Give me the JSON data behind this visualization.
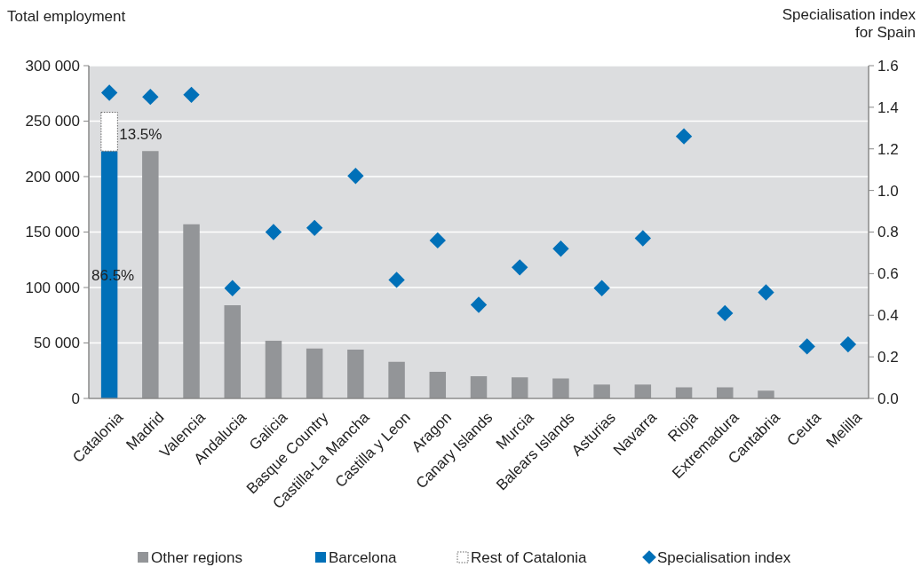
{
  "chart_data": {
    "type": "bar",
    "stacked": true,
    "ylabel": "Total employment",
    "y2label": "Specialisation index\nfor Spain",
    "categories": [
      "Catalonia",
      "Madrid",
      "Valencia",
      "Andalucia",
      "Galicia",
      "Basque Country",
      "Castilla-La Mancha",
      "Castilla y Leon",
      "Aragon",
      "Canary Islands",
      "Murcia",
      "Balears Islands",
      "Asturias",
      "Navarra",
      "Rioja",
      "Extremadura",
      "Cantabria",
      "Ceuta",
      "Melilla"
    ],
    "series": [
      {
        "name": "Other regions",
        "type": "bar",
        "color": "#939598",
        "values": [
          null,
          223000,
          157000,
          84000,
          52000,
          45000,
          44000,
          33000,
          24000,
          20000,
          19000,
          18000,
          12500,
          12500,
          10000,
          10000,
          7000,
          null,
          null
        ]
      },
      {
        "name": "Barcelona",
        "type": "bar",
        "color": "#0070b8",
        "values": [
          223000,
          null,
          null,
          null,
          null,
          null,
          null,
          null,
          null,
          null,
          null,
          null,
          null,
          null,
          null,
          null,
          null,
          null,
          null
        ]
      },
      {
        "name": "Rest of Catalonia",
        "type": "bar",
        "color": "#ffffff",
        "values": [
          35000,
          null,
          null,
          null,
          null,
          null,
          null,
          null,
          null,
          null,
          null,
          null,
          null,
          null,
          null,
          null,
          null,
          null,
          null
        ]
      },
      {
        "name": "Specialisation index",
        "type": "scatter",
        "axis": "y2",
        "marker": "diamond",
        "color": "#0070b8",
        "x": [
          "Catalonia",
          "Madrid",
          "Valencia",
          "Andalucia",
          "Galicia",
          "Basque Country",
          "Castilla-La Mancha",
          "Castilla y Leon",
          "Aragon",
          "Canary Islands",
          "Murcia",
          "Balears Islands",
          "Asturias",
          "Navarra",
          "Rioja",
          "Extremadura",
          "Cantabria",
          "Ceuta",
          "Melilla"
        ],
        "values": [
          1.47,
          1.45,
          1.46,
          0.53,
          0.8,
          0.82,
          1.07,
          0.57,
          0.76,
          0.45,
          0.63,
          0.72,
          0.53,
          0.77,
          1.26,
          0.41,
          0.51,
          0.25,
          0.26
        ]
      }
    ],
    "annotations": [
      "13.5%",
      "86.5%"
    ],
    "ylim": [
      0,
      300000
    ],
    "yticks": [
      0,
      {
        "value": 50000,
        "label": "50 000"
      },
      {
        "value": 100000,
        "label": "100 000"
      },
      {
        "value": 150000,
        "label": "150 000"
      },
      {
        "value": 200000,
        "label": "200 000"
      },
      {
        "value": 250000,
        "label": "250 000"
      },
      {
        "value": 300000,
        "label": "300 000"
      }
    ],
    "y2lim": [
      0,
      1.6
    ],
    "y2ticks": [
      {
        "value": 0,
        "label": "0.0"
      },
      {
        "value": 0.2,
        "label": "0.2"
      },
      {
        "value": 0.4,
        "label": "0.4"
      },
      {
        "value": 0.6,
        "label": "0.6"
      },
      {
        "value": 0.8,
        "label": "0.8"
      },
      {
        "value": 1,
        "label": "1.0"
      },
      {
        "value": 1.2,
        "label": "1.2"
      },
      {
        "value": 1.4,
        "label": "1.4"
      },
      {
        "value": 1.6,
        "label": "1.6"
      }
    ],
    "grid": "y",
    "legend": "bottom"
  }
}
